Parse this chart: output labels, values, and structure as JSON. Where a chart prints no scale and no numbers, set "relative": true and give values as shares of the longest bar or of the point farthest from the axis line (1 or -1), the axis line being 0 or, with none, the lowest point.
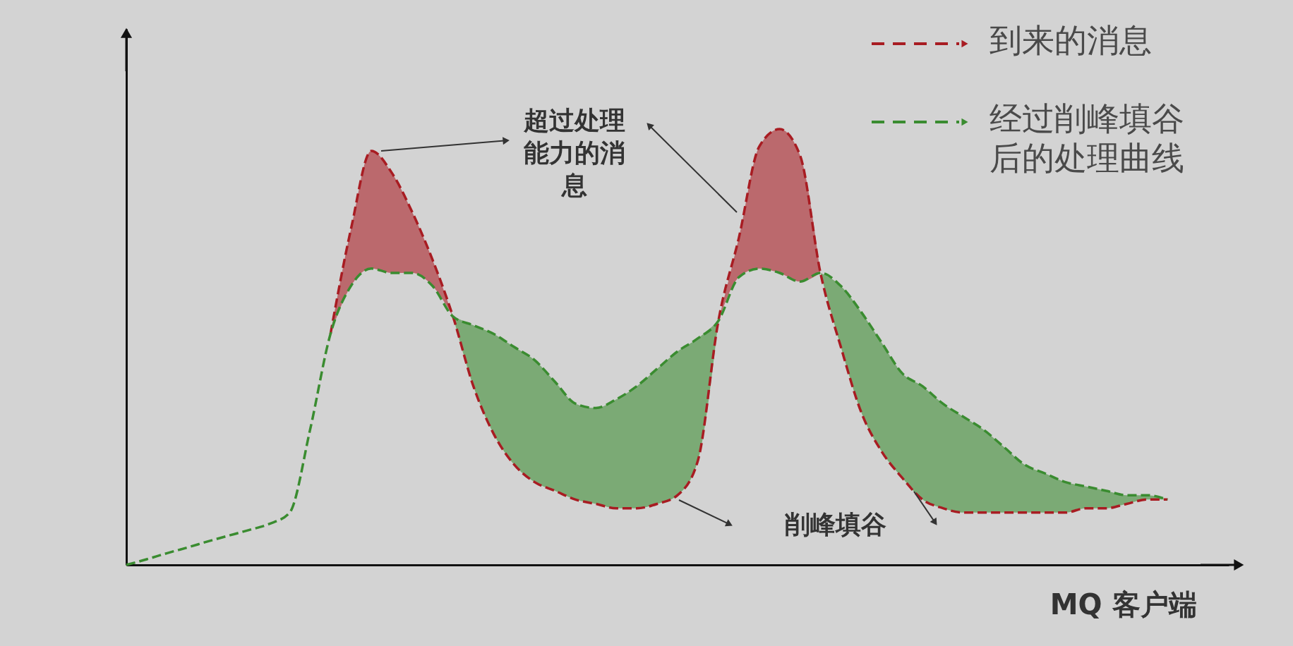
{
  "chart_data": {
    "type": "line",
    "relative": true,
    "xlabel": "MQ 客户端",
    "legend": "top right",
    "line_style": "dashed",
    "tick_labels": false,
    "categories": [
      null,
      null,
      null,
      null,
      null,
      null,
      null,
      null,
      null,
      null,
      null,
      null,
      null,
      null,
      null,
      null,
      null,
      null,
      null,
      null,
      null,
      null,
      null,
      null,
      null,
      null,
      null,
      null,
      null,
      null,
      null,
      null,
      null,
      null,
      null,
      null,
      null,
      null,
      null,
      null,
      null,
      null,
      null,
      null,
      null,
      null,
      null,
      null,
      null,
      null,
      null,
      null,
      null,
      null,
      null
    ],
    "series": [
      {
        "name": "到来的消息",
        "color": "#a81c22",
        "values": [
          null,
          null,
          null,
          null,
          null,
          null,
          null,
          null,
          null,
          null,
          0.53,
          0.77,
          0.95,
          0.9,
          0.81,
          0.7,
          0.57,
          0.41,
          0.3,
          0.23,
          0.19,
          0.17,
          0.15,
          0.14,
          0.13,
          0.13,
          0.14,
          0.16,
          0.24,
          0.56,
          0.75,
          0.96,
          1.0,
          0.94,
          0.67,
          0.5,
          0.35,
          0.26,
          0.2,
          0.15,
          0.13,
          0.12,
          0.12,
          0.12,
          0.12,
          0.12,
          0.12,
          0.13,
          0.13,
          0.14,
          0.15,
          0.15,
          null,
          null,
          null
        ],
        "lower": [
          null,
          null,
          null,
          null,
          null,
          null,
          null,
          null,
          null,
          null,
          0.53,
          0.64,
          0.68,
          0.67,
          0.67,
          0.64,
          0.57,
          null,
          null,
          null,
          null,
          null,
          null,
          null,
          null,
          null,
          null,
          null,
          null,
          0.56,
          0.66,
          0.68,
          0.67,
          0.65,
          0.67,
          null,
          null,
          null,
          null,
          null,
          null,
          null,
          null,
          null,
          null,
          null,
          null,
          null,
          null,
          null,
          null,
          null,
          null,
          null,
          null
        ],
        "upper": [
          null,
          null,
          null,
          null,
          null,
          null,
          null,
          null,
          null,
          null,
          0.53,
          0.77,
          0.95,
          0.9,
          0.81,
          0.7,
          0.57,
          null,
          null,
          null,
          null,
          null,
          null,
          null,
          null,
          null,
          null,
          null,
          null,
          0.56,
          0.75,
          0.96,
          1.0,
          0.94,
          0.67,
          null,
          null,
          null,
          null,
          null,
          null,
          null,
          null,
          null,
          null,
          null,
          null,
          null,
          null,
          null,
          null,
          null,
          null,
          null,
          null
        ]
      },
      {
        "name": "经过削峰填谷后的处理曲线",
        "color": "#3a8c30",
        "values": [
          0,
          0.013,
          0.027,
          0.04,
          0.054,
          0.067,
          0.08,
          0.094,
          0.12,
          0.31,
          0.53,
          0.64,
          0.68,
          0.67,
          0.67,
          0.64,
          0.57,
          0.55,
          0.53,
          0.5,
          0.47,
          0.42,
          0.37,
          0.36,
          0.38,
          0.41,
          0.45,
          0.49,
          0.52,
          0.56,
          0.66,
          0.68,
          0.67,
          0.65,
          0.67,
          0.64,
          0.58,
          0.51,
          0.44,
          0.41,
          0.37,
          0.34,
          0.31,
          0.27,
          0.23,
          0.21,
          0.19,
          0.18,
          0.17,
          0.16,
          0.16,
          0.15,
          null,
          null,
          null
        ],
        "lower": [
          null,
          null,
          null,
          null,
          null,
          null,
          null,
          null,
          null,
          null,
          null,
          null,
          null,
          null,
          null,
          null,
          0.57,
          0.41,
          0.3,
          0.23,
          0.19,
          0.17,
          0.15,
          0.14,
          0.13,
          0.13,
          0.14,
          0.16,
          0.24,
          0.56,
          null,
          null,
          null,
          null,
          0.67,
          0.5,
          0.35,
          0.26,
          0.2,
          0.15,
          0.13,
          0.12,
          0.12,
          0.12,
          0.12,
          0.12,
          0.12,
          0.13,
          0.13,
          0.14,
          0.15,
          0.15,
          null,
          null,
          null
        ],
        "upper": [
          null,
          null,
          null,
          null,
          null,
          null,
          null,
          null,
          null,
          null,
          null,
          null,
          null,
          null,
          null,
          null,
          0.57,
          0.55,
          0.53,
          0.5,
          0.47,
          0.42,
          0.37,
          0.36,
          0.38,
          0.41,
          0.45,
          0.49,
          0.52,
          0.56,
          null,
          null,
          null,
          null,
          0.67,
          0.64,
          0.58,
          0.51,
          0.44,
          0.41,
          0.37,
          0.34,
          0.31,
          0.27,
          0.23,
          0.21,
          0.19,
          0.18,
          0.17,
          0.16,
          0.16,
          0.15,
          null,
          null,
          null
        ]
      }
    ],
    "annotations": [
      "超过处理能力的消息",
      "削峰填谷"
    ]
  }
}
